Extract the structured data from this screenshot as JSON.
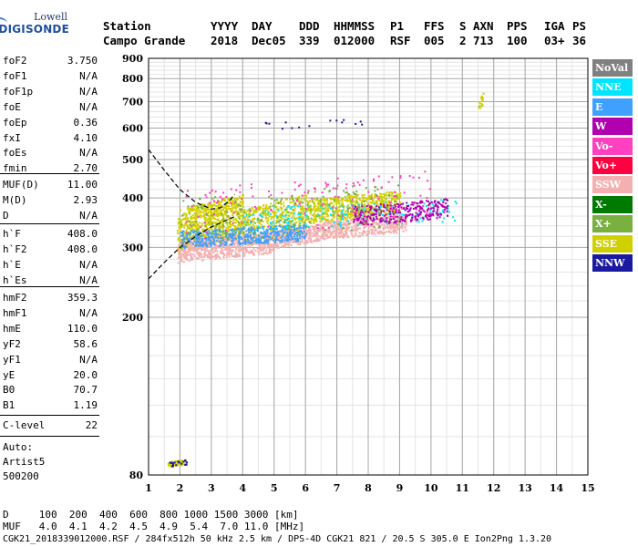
{
  "logo": {
    "line1": "Lowell",
    "line2": "DIGISONDE"
  },
  "header": {
    "row1": [
      "Station",
      "YYYY",
      "DAY",
      "DDD",
      "HHMMSS",
      "P1",
      "FFS",
      "S",
      "AXN",
      "PPS",
      "IGA",
      "PS"
    ],
    "row2": [
      "Campo Grande",
      "2018",
      "Dec05",
      "339",
      "012000",
      "RSF",
      "005",
      "2",
      "713",
      "100",
      "03+",
      "36"
    ]
  },
  "params": {
    "group1": [
      {
        "name": "foF2",
        "value": "3.750"
      },
      {
        "name": "foF1",
        "value": "N/A"
      },
      {
        "name": "foF1p",
        "value": "N/A"
      },
      {
        "name": "foE",
        "value": "N/A"
      },
      {
        "name": "foEp",
        "value": "0.36"
      },
      {
        "name": "fxI",
        "value": "4.10"
      },
      {
        "name": "foEs",
        "value": "N/A"
      },
      {
        "name": "fmin",
        "value": "2.70"
      }
    ],
    "group2": [
      {
        "name": "MUF(D)",
        "value": "11.00"
      },
      {
        "name": "M(D)",
        "value": "2.93"
      },
      {
        "name": "D",
        "value": "N/A"
      }
    ],
    "group3": [
      {
        "name": "h`F",
        "value": "408.0"
      },
      {
        "name": "h`F2",
        "value": "408.0"
      },
      {
        "name": "h`E",
        "value": "N/A"
      },
      {
        "name": "h`Es",
        "value": "N/A"
      }
    ],
    "group4": [
      {
        "name": "hmF2",
        "value": "359.3"
      },
      {
        "name": "hmF1",
        "value": "N/A"
      },
      {
        "name": "hmE",
        "value": "110.0"
      },
      {
        "name": "yF2",
        "value": "58.6"
      },
      {
        "name": "yF1",
        "value": "N/A"
      },
      {
        "name": "yE",
        "value": "20.0"
      },
      {
        "name": "B0",
        "value": "70.7"
      },
      {
        "name": "B1",
        "value": "1.19"
      }
    ],
    "group5": [
      {
        "name": "C-level",
        "value": "22"
      }
    ]
  },
  "autoscaling": {
    "line1": "Auto:",
    "line2": "Artist5",
    "line3": "500200"
  },
  "legend": [
    {
      "label": "NoVal",
      "color": "#808080"
    },
    {
      "label": "NNE",
      "color": "#00e5ff"
    },
    {
      "label": "E",
      "color": "#3fa0ff"
    },
    {
      "label": "W",
      "color": "#b000b0"
    },
    {
      "label": "Vo-",
      "color": "#ff40c0"
    },
    {
      "label": "Vo+",
      "color": "#ff0040"
    },
    {
      "label": "SSW",
      "color": "#f4b0b0"
    },
    {
      "label": "X-",
      "color": "#007a00"
    },
    {
      "label": "X+",
      "color": "#7ab040"
    },
    {
      "label": "SSE",
      "color": "#d0d000"
    },
    {
      "label": "NNW",
      "color": "#1a1aa0"
    }
  ],
  "chart_data": {
    "type": "scatter",
    "title": "",
    "xlabel": "",
    "ylabel": "",
    "xlim": [
      1,
      15
    ],
    "ylim_log": [
      80,
      900
    ],
    "x_ticks": [
      1,
      2,
      3,
      4,
      5,
      6,
      7,
      8,
      9,
      10,
      11,
      12,
      13,
      14,
      15
    ],
    "y_ticks": [
      80,
      200,
      300,
      400,
      500,
      600,
      700,
      800,
      900
    ],
    "grid": true,
    "legend_position": "right",
    "clusters": [
      {
        "direction": "SSE",
        "x": [
          1.9,
          4.0
        ],
        "y": [
          290,
          410
        ],
        "density": 800
      },
      {
        "direction": "SSE",
        "x": [
          4.0,
          6.0
        ],
        "y": [
          300,
          410
        ],
        "density": 400
      },
      {
        "direction": "SSE",
        "x": [
          6.0,
          9.0
        ],
        "y": [
          345,
          420
        ],
        "density": 600
      },
      {
        "direction": "SSE",
        "x": [
          1.6,
          2.2
        ],
        "y": [
          84,
          88
        ],
        "density": 60
      },
      {
        "direction": "SSE",
        "x": [
          11.5,
          11.65
        ],
        "y": [
          670,
          740
        ],
        "density": 20
      },
      {
        "direction": "SSW",
        "x": [
          1.9,
          5.0
        ],
        "y": [
          275,
          330
        ],
        "density": 700
      },
      {
        "direction": "SSW",
        "x": [
          5.0,
          6.5
        ],
        "y": [
          300,
          345
        ],
        "density": 300
      },
      {
        "direction": "SSW",
        "x": [
          6.5,
          9.2
        ],
        "y": [
          315,
          365
        ],
        "density": 500
      },
      {
        "direction": "E",
        "x": [
          2.0,
          6.0
        ],
        "y": [
          300,
          345
        ],
        "density": 500
      },
      {
        "direction": "NNE",
        "x": [
          4.0,
          10.8
        ],
        "y": [
          330,
          400
        ],
        "density": 200
      },
      {
        "direction": "W",
        "x": [
          7.5,
          10.5
        ],
        "y": [
          340,
          400
        ],
        "density": 300
      },
      {
        "direction": "Vo-",
        "x": [
          2.0,
          10.0
        ],
        "y": [
          310,
          470
        ],
        "density": 150
      },
      {
        "direction": "X+",
        "x": [
          2.0,
          9.0
        ],
        "y": [
          300,
          440
        ],
        "density": 200
      },
      {
        "direction": "NNW",
        "x": [
          4.2,
          7.9
        ],
        "y": [
          595,
          635
        ],
        "density": 15
      },
      {
        "direction": "NNW",
        "x": [
          1.6,
          2.2
        ],
        "y": [
          84,
          88
        ],
        "density": 20
      }
    ],
    "profile_curve": {
      "x": [
        1.0,
        1.5,
        2.0,
        2.5,
        3.0,
        3.3,
        3.6,
        3.7,
        3.75
      ],
      "y": [
        530,
        470,
        420,
        390,
        375,
        378,
        395,
        405,
        408
      ]
    },
    "profile_curve_lower": {
      "x": [
        1.0,
        1.5,
        2.0,
        2.5,
        3.0,
        3.5,
        3.75
      ],
      "y": [
        250,
        275,
        300,
        320,
        338,
        352,
        359
      ]
    }
  },
  "footer": {
    "line1": "D     100  200  400  600  800 1000 1500 3000 [km]",
    "line2": "MUF   4.0  4.1  4.2  4.5  4.9  5.4  7.0 11.0 [MHz]",
    "line3": "CGK21_2018339012000.RSF / 284fx512h 50 kHz 2.5 km / DPS-4D CGK21 821 / 20.5 S 305.0 E Ion2Png 1.3.20"
  }
}
